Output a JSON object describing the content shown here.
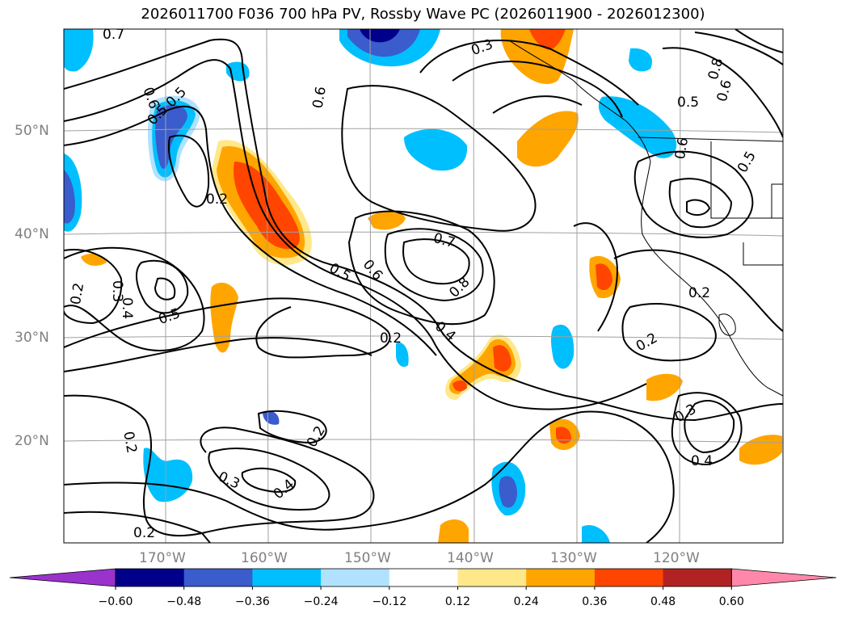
{
  "title": "2026011700 F036 700 hPa PV, Rossby Wave PC (2026011900 - 2026012300)",
  "lat_labels": [
    "50°N",
    "40°N",
    "30°N",
    "20°N"
  ],
  "lon_labels": [
    "170°W",
    "160°W",
    "150°W",
    "140°W",
    "130°W",
    "120°W"
  ],
  "colorbar": {
    "ticks": [
      "−0.60",
      "−0.48",
      "−0.36",
      "−0.24",
      "−0.12",
      "0.12",
      "0.24",
      "0.36",
      "0.48",
      "0.60"
    ],
    "colors": [
      "#9933cc",
      "#00008b",
      "#3a5ccc",
      "#00bfff",
      "#b0e2ff",
      "#ffffff",
      "#ffe88a",
      "#ffa500",
      "#ff4500",
      "#b22222",
      "#ff88aa"
    ]
  },
  "contour_labels": [
    "0.7",
    "0.6",
    "0.5",
    "0.5",
    "0.6",
    "0.2",
    "0.5",
    "0.6",
    "0.7",
    "0.8",
    "0.4",
    "0.2",
    "0.3",
    "0.8",
    "0.6",
    "0.5",
    "0.6",
    "0.5",
    "0.2",
    "0.3",
    "0.4",
    "0.2",
    "0.3",
    "0.4",
    "0.2",
    "0.2",
    "0.4",
    "0.3",
    "0.5",
    "0.2",
    "0.2"
  ]
}
